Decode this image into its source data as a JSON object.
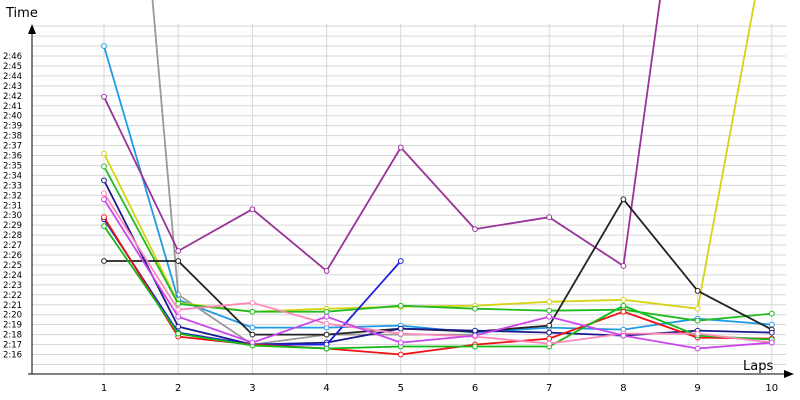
{
  "chart_data": {
    "type": "line",
    "xlabel": "Laps",
    "ylabel": "Time",
    "x": [
      1,
      2,
      3,
      4,
      5,
      6,
      7,
      8,
      9,
      10
    ],
    "xlim": [
      0.1,
      10.05
    ],
    "y_tick_labels": [
      "2:16",
      "2:17",
      "2:18",
      "2:19",
      "2:20",
      "2:21",
      "2:22",
      "2:23",
      "2:24",
      "2:25",
      "2:26",
      "2:27",
      "2:28",
      "2:29",
      "2:30",
      "2:31",
      "2:32",
      "2:33",
      "2:34",
      "2:35",
      "2:36",
      "2:37",
      "2:38",
      "2:39",
      "2:40",
      "2:41",
      "2:42",
      "2:43",
      "2:44",
      "2:45",
      "2:46"
    ],
    "ylim_seconds": [
      134,
      169
    ],
    "y_grid_step_seconds": 1,
    "grid": true,
    "series": [
      {
        "color": "#999999",
        "values": [
          null,
          142,
          137,
          138,
          138,
          138,
          null,
          null,
          null,
          null
        ],
        "pre_segment_from": [
          1.65,
          172
        ]
      },
      {
        "color": "#1e9be6",
        "values": [
          167,
          141.5,
          138.7,
          138.7,
          138.9,
          138.2,
          138.7,
          138.5,
          139.6,
          139.0
        ]
      },
      {
        "color": "#993399",
        "values": [
          161.9,
          146.4,
          150.6,
          144.4,
          156.8,
          148.6,
          149.8,
          144.9,
          null,
          null
        ],
        "post_segment_to": [
          8.5,
          172
        ]
      },
      {
        "color": "#d4d414",
        "values": [
          156.2,
          141.2,
          140.3,
          140.6,
          140.8,
          140.9,
          141.3,
          141.5,
          140.6,
          null
        ],
        "post_segment_to": [
          9.78,
          172
        ]
      },
      {
        "color": "#22bb22",
        "values": [
          154.9,
          141.1,
          140.3,
          140.3,
          140.9,
          140.6,
          140.4,
          140.5,
          139.4,
          140.1
        ]
      },
      {
        "color": "#222222",
        "values": [
          145.4,
          145.4,
          138.0,
          138.0,
          138.6,
          138.3,
          138.9,
          151.6,
          142.4,
          138.5
        ]
      },
      {
        "color": "#1a1a8c",
        "values": [
          153.5,
          138.8,
          137.0,
          137.2,
          138.6,
          138.4,
          138.2,
          137.9,
          138.4,
          138.2
        ]
      },
      {
        "color": "#2020dd",
        "values": [
          149.6,
          138.2,
          137.0,
          137.0,
          145.4,
          null,
          null,
          null,
          null,
          null
        ]
      },
      {
        "color": "#ee1111",
        "values": [
          149.8,
          137.8,
          137.0,
          136.6,
          136.0,
          137.0,
          137.6,
          140.3,
          137.7,
          137.6
        ]
      },
      {
        "color": "#11bb11",
        "values": [
          148.9,
          138.1,
          136.9,
          136.6,
          136.8,
          136.8,
          136.8,
          140.9,
          137.9,
          137.5
        ]
      },
      {
        "color": "#ff88bb",
        "values": [
          152.2,
          140.5,
          141.2,
          139.1,
          138.1,
          137.8,
          137.1,
          138.1,
          138.1,
          137.2
        ]
      },
      {
        "color": "#cc44ee",
        "values": [
          151.6,
          139.8,
          137.2,
          139.8,
          137.2,
          137.9,
          139.8,
          137.9,
          136.6,
          137.2
        ]
      }
    ]
  }
}
